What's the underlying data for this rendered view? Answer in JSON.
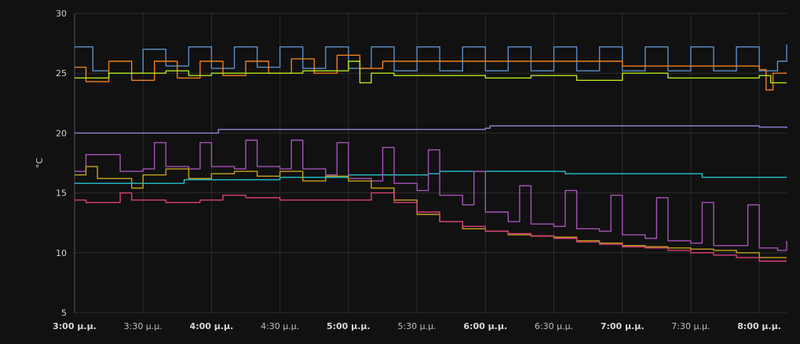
{
  "chart_data": {
    "type": "line",
    "title": "",
    "xlabel": "",
    "ylabel": "°C",
    "xlim": [
      "3:00",
      "8:12"
    ],
    "ylim": [
      5,
      30
    ],
    "yticks": [
      5,
      10,
      15,
      20,
      25,
      30
    ],
    "grid": true,
    "x_ticks": [
      {
        "x": "3:00",
        "label": "3:00 μ.μ.",
        "major": true
      },
      {
        "x": "3:30",
        "label": "3:30 μ.μ.",
        "major": false
      },
      {
        "x": "4:00",
        "label": "4:00 μ.μ.",
        "major": true
      },
      {
        "x": "4:30",
        "label": "4:30 μ.μ.",
        "major": false
      },
      {
        "x": "5:00",
        "label": "5:00 μ.μ.",
        "major": true
      },
      {
        "x": "5:30",
        "label": "5:30 μ.μ.",
        "major": false
      },
      {
        "x": "6:00",
        "label": "6:00 μ.μ.",
        "major": true
      },
      {
        "x": "6:30",
        "label": "6:30 μ.μ.",
        "major": false
      },
      {
        "x": "7:00",
        "label": "7:00 μ.μ.",
        "major": true
      },
      {
        "x": "7:30",
        "label": "7:30 μ.μ.",
        "major": false
      },
      {
        "x": "8:00",
        "label": "8:00 μ.μ.",
        "major": true
      }
    ],
    "series": [
      {
        "color": "#5b8fc9",
        "points": [
          [
            "3:00",
            27.2
          ],
          [
            "3:08",
            25.2
          ],
          [
            "3:15",
            25.0
          ],
          [
            "3:25",
            25.0
          ],
          [
            "3:30",
            27.0
          ],
          [
            "3:40",
            25.6
          ],
          [
            "3:50",
            27.2
          ],
          [
            "4:00",
            25.4
          ],
          [
            "4:10",
            27.2
          ],
          [
            "4:20",
            25.5
          ],
          [
            "4:30",
            27.2
          ],
          [
            "4:40",
            25.4
          ],
          [
            "4:50",
            27.2
          ],
          [
            "5:00",
            25.4
          ],
          [
            "5:10",
            27.2
          ],
          [
            "5:20",
            25.2
          ],
          [
            "5:30",
            27.2
          ],
          [
            "5:40",
            25.2
          ],
          [
            "5:50",
            27.2
          ],
          [
            "6:00",
            25.2
          ],
          [
            "6:10",
            27.2
          ],
          [
            "6:20",
            25.2
          ],
          [
            "6:30",
            27.2
          ],
          [
            "6:40",
            25.2
          ],
          [
            "6:50",
            27.2
          ],
          [
            "7:00",
            25.2
          ],
          [
            "7:10",
            27.2
          ],
          [
            "7:20",
            25.2
          ],
          [
            "7:30",
            27.2
          ],
          [
            "7:40",
            25.2
          ],
          [
            "7:50",
            27.2
          ],
          [
            "8:00",
            25.2
          ],
          [
            "8:08",
            26.0
          ],
          [
            "8:12",
            27.4
          ]
        ]
      },
      {
        "color": "#ef7f1a",
        "points": [
          [
            "3:00",
            25.5
          ],
          [
            "3:05",
            24.3
          ],
          [
            "3:15",
            26.0
          ],
          [
            "3:25",
            24.4
          ],
          [
            "3:35",
            26.0
          ],
          [
            "3:45",
            24.6
          ],
          [
            "3:55",
            26.0
          ],
          [
            "4:05",
            24.8
          ],
          [
            "4:15",
            26.0
          ],
          [
            "4:25",
            25.0
          ],
          [
            "4:35",
            26.2
          ],
          [
            "4:45",
            25.0
          ],
          [
            "4:55",
            26.5
          ],
          [
            "5:05",
            25.4
          ],
          [
            "5:15",
            26.0
          ],
          [
            "5:30",
            26.0
          ],
          [
            "6:00",
            26.0
          ],
          [
            "6:30",
            26.0
          ],
          [
            "7:00",
            25.6
          ],
          [
            "7:30",
            25.6
          ],
          [
            "8:00",
            25.3
          ],
          [
            "8:03",
            23.6
          ],
          [
            "8:06",
            25.0
          ],
          [
            "8:12",
            25.0
          ]
        ]
      },
      {
        "color": "#b4e51d",
        "points": [
          [
            "3:00",
            24.6
          ],
          [
            "3:10",
            24.6
          ],
          [
            "3:15",
            25.0
          ],
          [
            "3:30",
            25.0
          ],
          [
            "3:40",
            25.2
          ],
          [
            "3:50",
            24.8
          ],
          [
            "4:00",
            25.0
          ],
          [
            "4:20",
            25.0
          ],
          [
            "4:40",
            25.2
          ],
          [
            "5:00",
            26.0
          ],
          [
            "5:05",
            24.2
          ],
          [
            "5:10",
            25.0
          ],
          [
            "5:20",
            24.8
          ],
          [
            "5:40",
            24.8
          ],
          [
            "6:00",
            24.6
          ],
          [
            "6:20",
            24.8
          ],
          [
            "6:40",
            24.4
          ],
          [
            "7:00",
            25.0
          ],
          [
            "7:20",
            24.6
          ],
          [
            "7:40",
            24.6
          ],
          [
            "8:00",
            24.8
          ],
          [
            "8:05",
            24.2
          ],
          [
            "8:12",
            24.2
          ]
        ]
      },
      {
        "color": "#8a88d8",
        "points": [
          [
            "3:00",
            20.0
          ],
          [
            "4:00",
            20.0
          ],
          [
            "4:03",
            20.3
          ],
          [
            "5:30",
            20.3
          ],
          [
            "6:00",
            20.4
          ],
          [
            "6:02",
            20.6
          ],
          [
            "7:00",
            20.6
          ],
          [
            "8:00",
            20.5
          ],
          [
            "8:12",
            20.4
          ]
        ]
      },
      {
        "color": "#22c2cf",
        "points": [
          [
            "3:00",
            15.8
          ],
          [
            "3:40",
            15.8
          ],
          [
            "3:48",
            16.1
          ],
          [
            "4:30",
            16.3
          ],
          [
            "5:00",
            16.5
          ],
          [
            "5:35",
            16.6
          ],
          [
            "5:40",
            16.8
          ],
          [
            "6:30",
            16.8
          ],
          [
            "6:35",
            16.6
          ],
          [
            "7:00",
            16.6
          ],
          [
            "7:30",
            16.6
          ],
          [
            "7:35",
            16.3
          ],
          [
            "8:12",
            16.3
          ]
        ]
      },
      {
        "color": "#a454b6",
        "points": [
          [
            "3:00",
            16.8
          ],
          [
            "3:05",
            18.2
          ],
          [
            "3:15",
            18.2
          ],
          [
            "3:20",
            16.8
          ],
          [
            "3:30",
            17.0
          ],
          [
            "3:35",
            19.2
          ],
          [
            "3:40",
            17.2
          ],
          [
            "3:50",
            17.0
          ],
          [
            "3:55",
            19.2
          ],
          [
            "4:00",
            17.2
          ],
          [
            "4:10",
            17.0
          ],
          [
            "4:15",
            19.4
          ],
          [
            "4:20",
            17.2
          ],
          [
            "4:30",
            17.0
          ],
          [
            "4:35",
            19.4
          ],
          [
            "4:40",
            17.0
          ],
          [
            "4:50",
            16.5
          ],
          [
            "4:55",
            19.2
          ],
          [
            "5:00",
            16.2
          ],
          [
            "5:10",
            16.0
          ],
          [
            "5:15",
            18.8
          ],
          [
            "5:20",
            15.8
          ],
          [
            "5:30",
            15.2
          ],
          [
            "5:35",
            18.6
          ],
          [
            "5:40",
            14.8
          ],
          [
            "5:50",
            14.0
          ],
          [
            "5:55",
            16.8
          ],
          [
            "6:00",
            13.4
          ],
          [
            "6:10",
            12.6
          ],
          [
            "6:15",
            15.6
          ],
          [
            "6:20",
            12.4
          ],
          [
            "6:30",
            12.2
          ],
          [
            "6:35",
            15.2
          ],
          [
            "6:40",
            12.0
          ],
          [
            "6:50",
            11.8
          ],
          [
            "6:55",
            14.8
          ],
          [
            "7:00",
            11.5
          ],
          [
            "7:10",
            11.2
          ],
          [
            "7:15",
            14.6
          ],
          [
            "7:20",
            11.0
          ],
          [
            "7:30",
            10.8
          ],
          [
            "7:35",
            14.2
          ],
          [
            "7:40",
            10.6
          ],
          [
            "7:50",
            10.6
          ],
          [
            "7:55",
            14.0
          ],
          [
            "8:00",
            10.4
          ],
          [
            "8:08",
            10.2
          ],
          [
            "8:12",
            11.0
          ]
        ]
      },
      {
        "color": "#c4a318",
        "points": [
          [
            "3:00",
            16.5
          ],
          [
            "3:05",
            17.2
          ],
          [
            "3:10",
            16.2
          ],
          [
            "3:20",
            16.2
          ],
          [
            "3:25",
            15.4
          ],
          [
            "3:30",
            16.5
          ],
          [
            "3:40",
            17.0
          ],
          [
            "3:50",
            16.2
          ],
          [
            "4:00",
            16.6
          ],
          [
            "4:10",
            16.8
          ],
          [
            "4:20",
            16.4
          ],
          [
            "4:30",
            16.8
          ],
          [
            "4:40",
            16.0
          ],
          [
            "4:50",
            16.4
          ],
          [
            "5:00",
            16.0
          ],
          [
            "5:10",
            15.4
          ],
          [
            "5:20",
            14.4
          ],
          [
            "5:30",
            13.2
          ],
          [
            "5:40",
            12.6
          ],
          [
            "5:50",
            12.0
          ],
          [
            "6:00",
            11.8
          ],
          [
            "6:10",
            11.5
          ],
          [
            "6:20",
            11.4
          ],
          [
            "6:30",
            11.3
          ],
          [
            "6:40",
            11.0
          ],
          [
            "6:50",
            10.8
          ],
          [
            "7:00",
            10.6
          ],
          [
            "7:10",
            10.5
          ],
          [
            "7:20",
            10.4
          ],
          [
            "7:30",
            10.3
          ],
          [
            "7:40",
            10.2
          ],
          [
            "7:50",
            10.0
          ],
          [
            "8:00",
            9.6
          ],
          [
            "8:12",
            9.6
          ]
        ]
      },
      {
        "color": "#db3f79",
        "points": [
          [
            "3:00",
            14.4
          ],
          [
            "3:05",
            14.2
          ],
          [
            "3:15",
            14.2
          ],
          [
            "3:20",
            15.0
          ],
          [
            "3:25",
            14.4
          ],
          [
            "3:40",
            14.2
          ],
          [
            "3:55",
            14.4
          ],
          [
            "4:05",
            14.8
          ],
          [
            "4:15",
            14.6
          ],
          [
            "4:30",
            14.4
          ],
          [
            "4:45",
            14.4
          ],
          [
            "5:00",
            14.4
          ],
          [
            "5:10",
            15.0
          ],
          [
            "5:20",
            14.2
          ],
          [
            "5:30",
            13.4
          ],
          [
            "5:40",
            12.6
          ],
          [
            "5:50",
            12.2
          ],
          [
            "6:00",
            11.8
          ],
          [
            "6:10",
            11.6
          ],
          [
            "6:20",
            11.4
          ],
          [
            "6:30",
            11.2
          ],
          [
            "6:40",
            10.9
          ],
          [
            "6:50",
            10.7
          ],
          [
            "7:00",
            10.5
          ],
          [
            "7:10",
            10.4
          ],
          [
            "7:20",
            10.2
          ],
          [
            "7:30",
            10.0
          ],
          [
            "7:40",
            9.8
          ],
          [
            "7:50",
            9.6
          ],
          [
            "8:00",
            9.3
          ],
          [
            "8:12",
            9.3
          ]
        ]
      }
    ]
  }
}
